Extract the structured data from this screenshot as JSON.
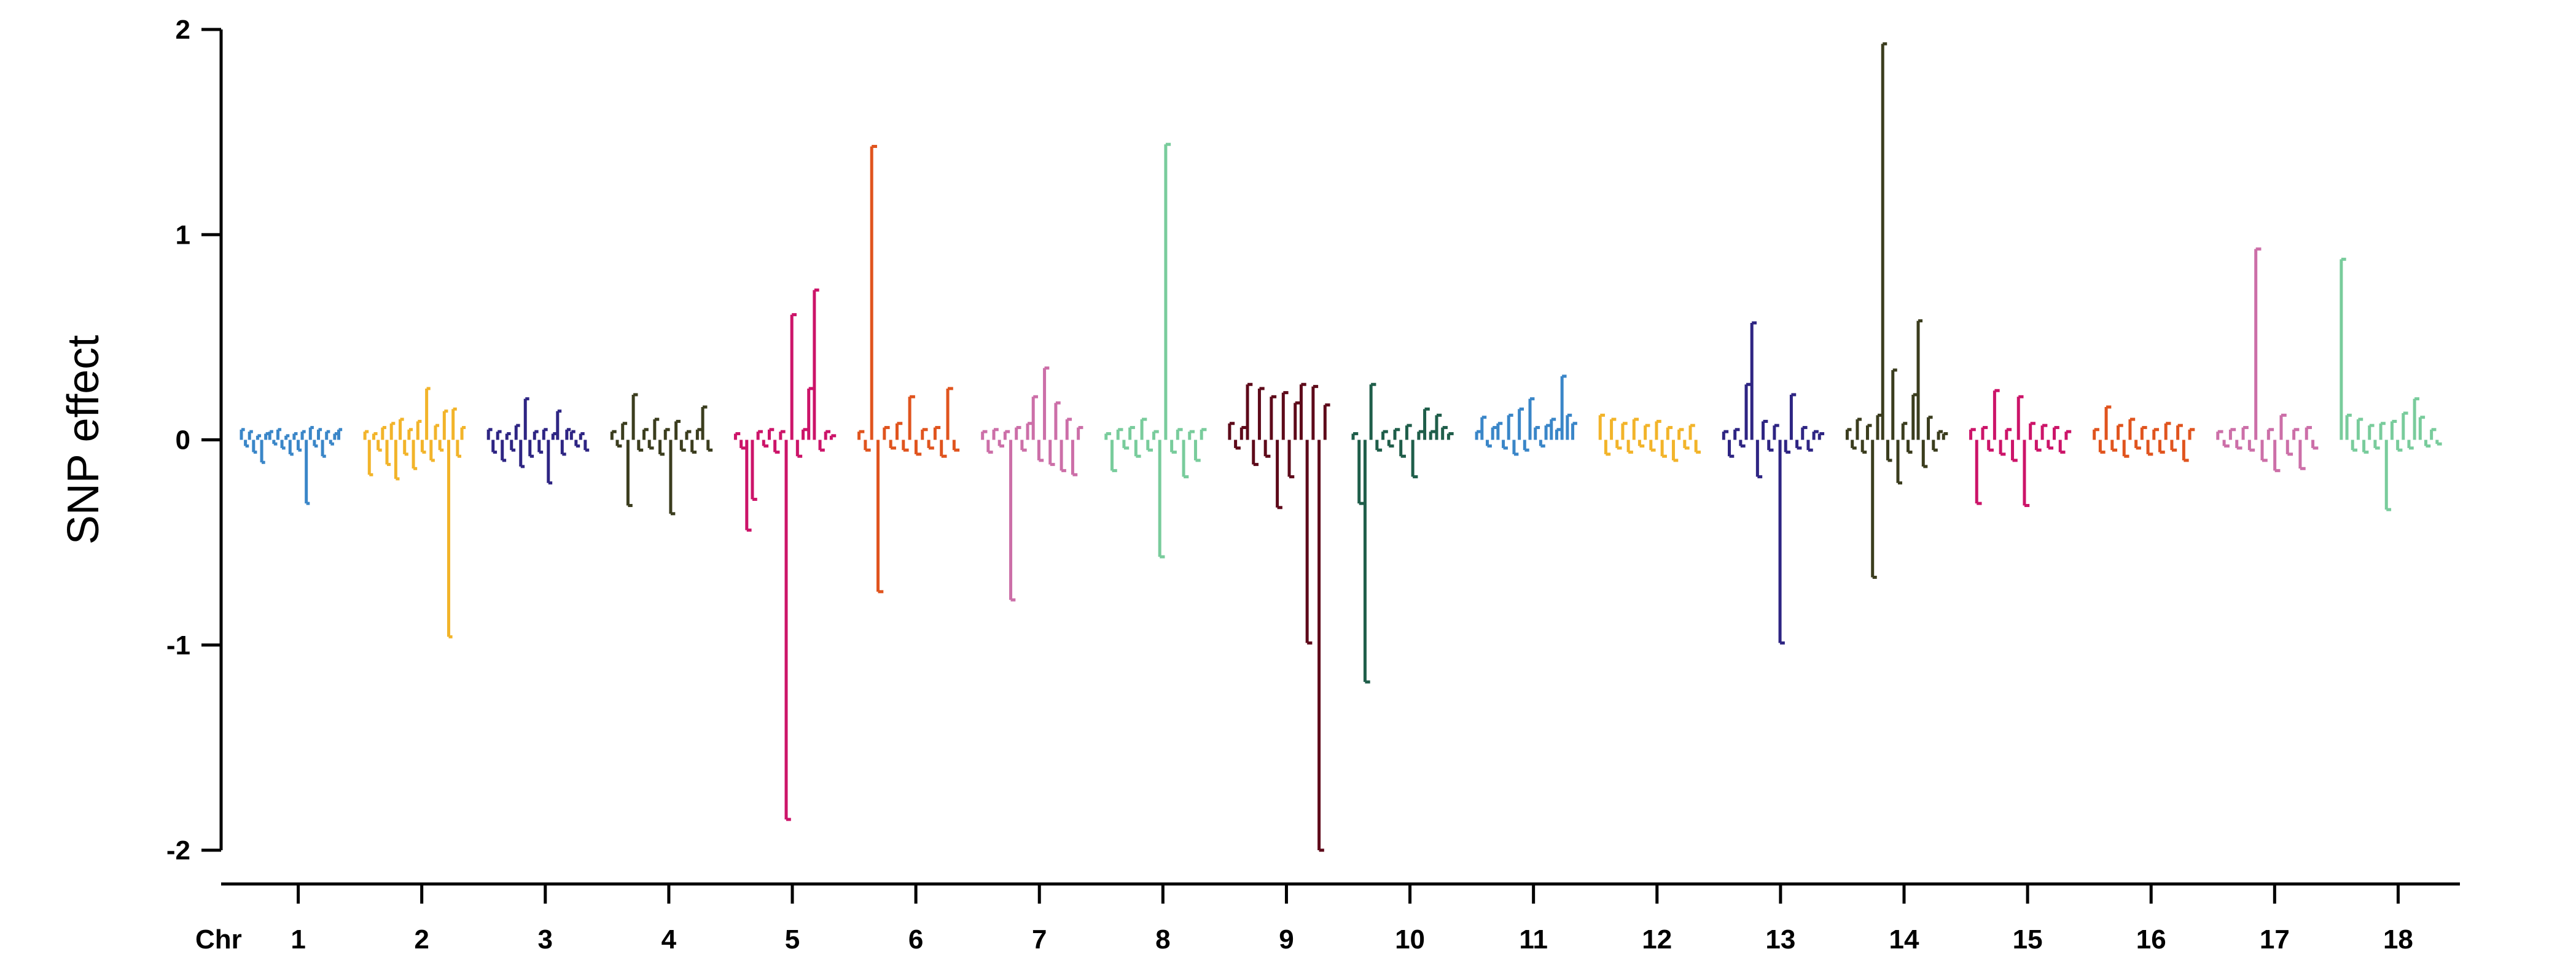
{
  "chart_data": {
    "type": "bar",
    "title": "",
    "xlabel": "",
    "ylabel": "SNP effect",
    "x_axis_prefix": "Chr",
    "ylim": [
      -2,
      2
    ],
    "yticks": [
      -2,
      -1,
      0,
      1,
      2
    ],
    "ytick_labels": [
      "-2",
      "-1",
      "0",
      "1",
      "2"
    ],
    "grid": false,
    "legend": "none",
    "chromosomes": [
      {
        "label": "1",
        "color": "#3a86c8",
        "effects": [
          0.05,
          -0.03,
          0.04,
          -0.06,
          0.02,
          -0.11,
          0.03,
          0.04,
          -0.02,
          0.05,
          -0.04,
          0.02,
          -0.07,
          0.03,
          -0.05,
          0.04,
          -0.31,
          0.06,
          -0.03,
          0.05,
          -0.08,
          0.04,
          -0.02,
          0.03,
          0.05
        ]
      },
      {
        "label": "2",
        "color": "#f2b42a",
        "effects": [
          0.04,
          -0.17,
          0.03,
          -0.05,
          0.06,
          -0.12,
          0.08,
          -0.19,
          0.1,
          -0.07,
          0.05,
          -0.14,
          0.09,
          -0.06,
          0.25,
          -0.1,
          0.07,
          -0.05,
          0.14,
          -0.96,
          0.15,
          -0.08,
          0.06
        ]
      },
      {
        "label": "3",
        "color": "#2e2583",
        "effects": [
          0.05,
          -0.06,
          0.04,
          -0.1,
          0.03,
          -0.05,
          0.07,
          -0.13,
          0.2,
          -0.08,
          0.04,
          -0.06,
          0.05,
          -0.21,
          0.03,
          0.14,
          -0.07,
          0.05,
          0.04,
          -0.03,
          0.03,
          -0.05
        ]
      },
      {
        "label": "4",
        "color": "#3b3d1e",
        "effects": [
          0.04,
          -0.03,
          0.08,
          -0.32,
          0.22,
          -0.05,
          0.05,
          -0.04,
          0.1,
          -0.07,
          0.05,
          -0.36,
          0.09,
          -0.05,
          0.04,
          -0.06,
          0.05,
          0.16,
          -0.05
        ]
      },
      {
        "label": "5",
        "color": "#cc1469",
        "effects": [
          0.03,
          -0.04,
          -0.44,
          -0.29,
          0.04,
          -0.03,
          0.05,
          -0.06,
          0.04,
          -1.85,
          0.61,
          -0.08,
          0.05,
          0.25,
          0.73,
          -0.05,
          0.04,
          0.02
        ]
      },
      {
        "label": "6",
        "color": "#e0541e",
        "effects": [
          0.04,
          -0.05,
          1.43,
          -0.74,
          0.06,
          -0.04,
          0.08,
          -0.05,
          0.21,
          -0.07,
          0.05,
          -0.04,
          0.06,
          -0.08,
          0.25,
          -0.05
        ]
      },
      {
        "label": "7",
        "color": "#cc6fa8",
        "effects": [
          0.04,
          -0.06,
          0.05,
          -0.03,
          0.04,
          -0.78,
          0.06,
          -0.05,
          0.08,
          0.21,
          -0.1,
          0.35,
          -0.12,
          0.18,
          -0.15,
          0.1,
          -0.17,
          0.06
        ]
      },
      {
        "label": "8",
        "color": "#79cc9c",
        "effects": [
          0.03,
          -0.15,
          0.05,
          -0.04,
          0.06,
          -0.08,
          0.1,
          -0.05,
          0.04,
          -0.57,
          1.44,
          -0.06,
          0.05,
          -0.18,
          0.04,
          -0.1,
          0.05
        ]
      },
      {
        "label": "9",
        "color": "#5e0a1a",
        "effects": [
          0.08,
          -0.04,
          0.06,
          0.27,
          -0.12,
          0.25,
          -0.08,
          0.21,
          -0.33,
          0.23,
          -0.18,
          0.18,
          0.27,
          -0.99,
          0.26,
          -2.0,
          0.17
        ]
      },
      {
        "label": "10",
        "color": "#1f5e4a",
        "effects": [
          0.03,
          -0.31,
          -1.18,
          0.27,
          -0.05,
          0.04,
          -0.03,
          0.05,
          -0.08,
          0.07,
          -0.18,
          0.04,
          0.15,
          0.04,
          0.12,
          0.06,
          0.03
        ]
      },
      {
        "label": "11",
        "color": "#3a86c8",
        "effects": [
          0.04,
          0.11,
          -0.03,
          0.06,
          0.08,
          -0.04,
          0.12,
          -0.07,
          0.15,
          -0.05,
          0.2,
          0.06,
          -0.03,
          0.07,
          0.1,
          0.05,
          0.31,
          0.12,
          0.08
        ]
      },
      {
        "label": "12",
        "color": "#f2b42a",
        "effects": [
          0.12,
          -0.07,
          0.1,
          -0.04,
          0.08,
          -0.06,
          0.1,
          -0.03,
          0.07,
          -0.05,
          0.09,
          -0.08,
          0.06,
          -0.1,
          0.05,
          -0.04,
          0.07,
          -0.06
        ]
      },
      {
        "label": "13",
        "color": "#2e2583",
        "effects": [
          0.04,
          -0.08,
          0.05,
          -0.03,
          0.27,
          0.57,
          -0.18,
          0.09,
          -0.05,
          0.07,
          -0.99,
          -0.06,
          0.22,
          -0.04,
          0.06,
          -0.05,
          0.04,
          0.03
        ]
      },
      {
        "label": "14",
        "color": "#3b3d1e",
        "effects": [
          0.05,
          -0.04,
          0.1,
          -0.06,
          0.07,
          -0.67,
          0.12,
          1.93,
          -0.1,
          0.34,
          -0.21,
          0.08,
          -0.06,
          0.22,
          0.58,
          -0.13,
          0.11,
          -0.05,
          0.04,
          0.03
        ]
      },
      {
        "label": "15",
        "color": "#cc1469",
        "effects": [
          0.05,
          -0.31,
          0.06,
          -0.05,
          0.24,
          -0.07,
          0.05,
          -0.1,
          0.21,
          -0.32,
          0.08,
          -0.05,
          0.07,
          -0.04,
          0.06,
          -0.06,
          0.04
        ]
      },
      {
        "label": "16",
        "color": "#e0541e",
        "effects": [
          0.05,
          -0.06,
          0.16,
          -0.05,
          0.07,
          -0.08,
          0.1,
          -0.04,
          0.06,
          -0.07,
          0.05,
          -0.06,
          0.08,
          -0.05,
          0.07,
          -0.1,
          0.05
        ]
      },
      {
        "label": "17",
        "color": "#cc6fa8",
        "effects": [
          0.04,
          -0.03,
          0.05,
          -0.04,
          0.06,
          -0.05,
          0.93,
          -0.1,
          0.05,
          -0.15,
          0.12,
          -0.07,
          0.05,
          -0.14,
          0.06,
          -0.04
        ]
      },
      {
        "label": "18",
        "color": "#79cc9c",
        "effects": [
          0.88,
          0.12,
          -0.05,
          0.1,
          -0.06,
          0.07,
          -0.04,
          0.08,
          -0.34,
          0.09,
          -0.05,
          0.13,
          -0.04,
          0.2,
          0.11,
          -0.03,
          0.05,
          -0.02
        ]
      }
    ]
  }
}
